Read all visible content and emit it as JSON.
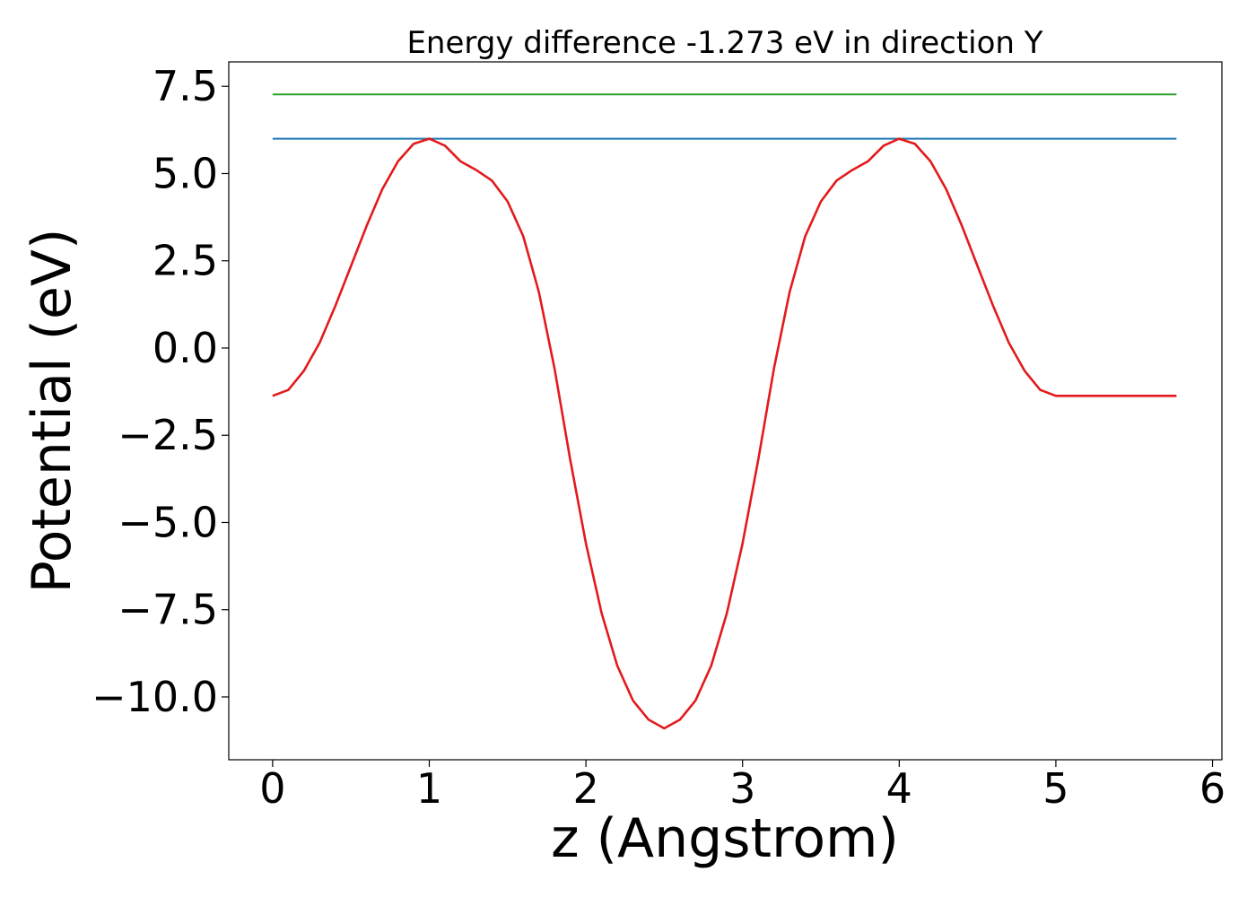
{
  "chart_data": {
    "type": "line",
    "title": "Energy difference -1.273 eV in direction Y",
    "xlabel": "z (Angstrom)",
    "ylabel": "Potential (eV)",
    "xlim": [
      -0.28,
      6.06
    ],
    "ylim": [
      -11.8,
      8.2
    ],
    "xticks": [
      0,
      1,
      2,
      3,
      4,
      5,
      6
    ],
    "xtick_labels": [
      "0",
      "1",
      "2",
      "3",
      "4",
      "5",
      "6"
    ],
    "yticks": [
      7.5,
      5.0,
      2.5,
      0.0,
      -2.5,
      -5.0,
      -7.5,
      -10.0
    ],
    "ytick_labels": [
      "7.5",
      "5.0",
      "2.5",
      "0.0",
      "−2.5",
      "−5.0",
      "−7.5",
      "−10.0"
    ],
    "grid": false,
    "legend": "none",
    "series": [
      {
        "color": "#2ca02c",
        "x": [
          0,
          5.77
        ],
        "y": [
          7.27,
          7.27
        ]
      },
      {
        "color": "#1f77b4",
        "x": [
          0,
          5.77
        ],
        "y": [
          6.0,
          6.0
        ]
      },
      {
        "color": "#e31a1c",
        "x": [
          0,
          0.1,
          0.2,
          0.3,
          0.4,
          0.5,
          0.6,
          0.7,
          0.8,
          0.9,
          1.0,
          1.1,
          1.2,
          1.3,
          1.4,
          1.5,
          1.6,
          1.7,
          1.8,
          1.9,
          2.0,
          2.1,
          2.2,
          2.3,
          2.4,
          2.5,
          2.6,
          2.7,
          2.8,
          2.9,
          3.0,
          3.1,
          3.2,
          3.3,
          3.4,
          3.5,
          3.6,
          3.7,
          3.8,
          3.9,
          4.0,
          4.1,
          4.2,
          4.3,
          4.4,
          4.5,
          4.6,
          4.7,
          4.8,
          4.9,
          5.0,
          5.1,
          5.2,
          5.3,
          5.4,
          5.5,
          5.6,
          5.7,
          5.77
        ],
        "y": [
          -1.37,
          -1.2,
          -0.65,
          0.15,
          1.2,
          2.35,
          3.5,
          4.55,
          5.35,
          5.85,
          6.0,
          5.8,
          5.35,
          5.1,
          4.8,
          4.2,
          3.2,
          1.6,
          -0.6,
          -3.2,
          -5.6,
          -7.6,
          -9.1,
          -10.1,
          -10.65,
          -10.9,
          -10.65,
          -10.1,
          -9.1,
          -7.6,
          -5.6,
          -3.2,
          -0.6,
          1.6,
          3.2,
          4.2,
          4.8,
          5.1,
          5.35,
          5.8,
          6.0,
          5.85,
          5.35,
          4.55,
          3.5,
          2.35,
          1.2,
          0.15,
          -0.65,
          -1.2,
          -1.37,
          -1.37,
          -1.37,
          -1.37,
          -1.37,
          -1.37,
          -1.37,
          -1.37,
          -1.37
        ]
      }
    ]
  }
}
